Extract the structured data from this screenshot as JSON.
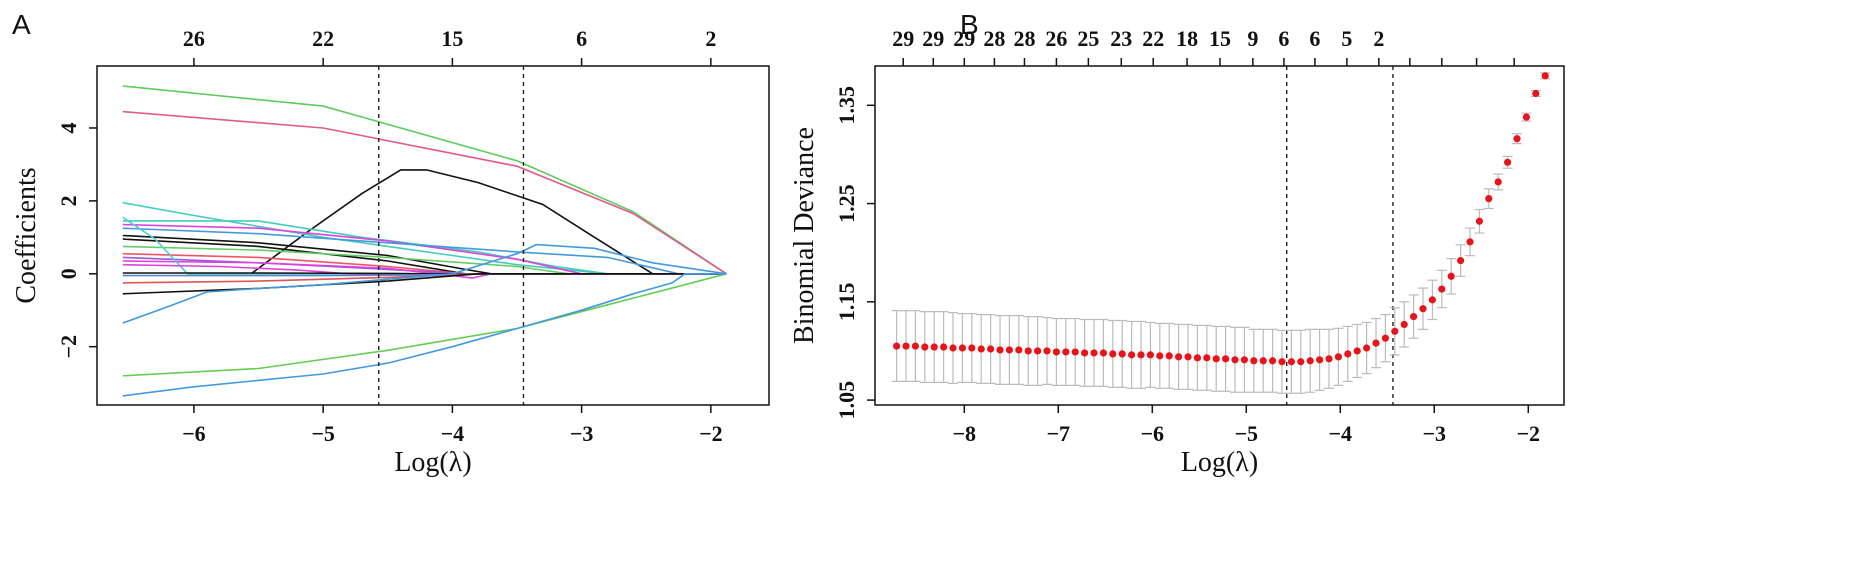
{
  "figure": {
    "panel_a_letter": "A",
    "panel_b_letter": "B"
  },
  "chart_data": [
    {
      "type": "line",
      "panel": "A",
      "xlabel": "Log(λ)",
      "ylabel": "Coefficients",
      "xlim": [
        -6.75,
        -1.55
      ],
      "ylim": [
        -3.6,
        5.7
      ],
      "x_ticks": [
        -6,
        -5,
        -4,
        -3,
        -2
      ],
      "x_tick_labels": [
        "−6",
        "−5",
        "−4",
        "−3",
        "−2"
      ],
      "y_ticks": [
        -2,
        0,
        2,
        4
      ],
      "y_tick_labels": [
        "−2",
        "0",
        "2",
        "4"
      ],
      "top_ticks": [
        -6,
        -5,
        -4,
        -3,
        -2
      ],
      "top_tick_labels": [
        "26",
        "22",
        "15",
        "6",
        "2"
      ],
      "vlines": [
        -4.57,
        -3.45
      ],
      "series": [
        {
          "name": "coef-1",
          "color": "#5ccc5c",
          "x": [
            -6.55,
            -5,
            -3.5,
            -2.6,
            -1.88
          ],
          "y": [
            5.15,
            4.6,
            3.1,
            1.7,
            0
          ]
        },
        {
          "name": "coef-2",
          "color": "#e05c8e",
          "x": [
            -6.55,
            -5,
            -3.5,
            -2.6,
            -1.88
          ],
          "y": [
            4.45,
            4.0,
            2.95,
            1.65,
            0
          ]
        },
        {
          "name": "coef-3",
          "color": "#111111",
          "x": [
            -5.55,
            -5.1,
            -4.7,
            -4.4,
            -4.2,
            -3.8,
            -3.3,
            -2.9,
            -2.45,
            -1.88
          ],
          "y": [
            0.02,
            1.2,
            2.2,
            2.85,
            2.85,
            2.5,
            1.9,
            1.0,
            0,
            0
          ]
        },
        {
          "name": "coef-4",
          "color": "#44ccbb",
          "x": [
            -6.55,
            -6,
            -5.5,
            -5,
            -4.5,
            -4,
            -3.5,
            -2.8,
            -1.88
          ],
          "y": [
            1.95,
            1.6,
            1.3,
            1.0,
            0.75,
            0.5,
            0.25,
            0,
            0
          ]
        },
        {
          "name": "coef-5",
          "color": "#44ccbb",
          "x": [
            -6.55,
            -5.5,
            -4.7,
            -3.8,
            -3.2,
            -2.8,
            -1.88
          ],
          "y": [
            1.45,
            1.45,
            1.0,
            0.6,
            0.2,
            0,
            0
          ]
        },
        {
          "name": "coef-6",
          "color": "#dd44dd",
          "x": [
            -6.55,
            -5.5,
            -4.5,
            -3.5,
            -3.0,
            -1.88
          ],
          "y": [
            1.35,
            1.25,
            0.9,
            0.4,
            0,
            0
          ]
        },
        {
          "name": "coef-7",
          "color": "#4499dd",
          "x": [
            -6.55,
            -5.5,
            -4.5,
            -3.5,
            -2.8,
            -2.25,
            -1.88
          ],
          "y": [
            1.25,
            1.1,
            0.85,
            0.6,
            0.45,
            0,
            0
          ]
        },
        {
          "name": "coef-8",
          "color": "#111111",
          "x": [
            -6.55,
            -5.5,
            -4.5,
            -3.9,
            -3.7,
            -1.88
          ],
          "y": [
            1.05,
            0.85,
            0.5,
            0.12,
            0,
            0
          ]
        },
        {
          "name": "coef-9",
          "color": "#111111",
          "x": [
            -6.55,
            -5.5,
            -4.5,
            -3.9,
            -1.88
          ],
          "y": [
            0.95,
            0.75,
            0.35,
            0,
            0
          ]
        },
        {
          "name": "coef-10",
          "color": "#66cc66",
          "x": [
            -6.55,
            -5.5,
            -4.5,
            -3.5,
            -3.1,
            -1.88
          ],
          "y": [
            0.75,
            0.65,
            0.45,
            0.2,
            0,
            0
          ]
        },
        {
          "name": "coef-11",
          "color": "#ee5566",
          "x": [
            -6.55,
            -5.5,
            -4.5,
            -3.9,
            -1.88
          ],
          "y": [
            0.55,
            0.45,
            0.2,
            0,
            0
          ]
        },
        {
          "name": "coef-12",
          "color": "#9955dd",
          "x": [
            -6.55,
            -5.5,
            -4.5,
            -3.9,
            -1.88
          ],
          "y": [
            0.45,
            0.3,
            0.12,
            0,
            0
          ]
        },
        {
          "name": "coef-13",
          "color": "#dd44dd",
          "x": [
            -6.55,
            -5.5,
            -4.5,
            -4.0,
            -3.85,
            -3.7,
            -1.88
          ],
          "y": [
            0.35,
            0.3,
            0.15,
            -0.05,
            -0.12,
            0,
            0
          ]
        },
        {
          "name": "coef-14",
          "color": "#55cccc",
          "x": [
            -6.55,
            -6.3,
            -6.05,
            -5.5,
            -1.88
          ],
          "y": [
            1.55,
            0.95,
            0,
            0,
            0
          ]
        },
        {
          "name": "coef-15",
          "color": "#dd44dd",
          "x": [
            -6.55,
            -5.8,
            -5.2,
            -4.8,
            -1.88
          ],
          "y": [
            0.25,
            0.2,
            0.1,
            0,
            0
          ]
        },
        {
          "name": "coef-16",
          "color": "#111111",
          "x": [
            -6.55,
            -5.5,
            -4.5,
            -4.2,
            -1.88
          ],
          "y": [
            0.02,
            0.02,
            0.01,
            0,
            0
          ]
        },
        {
          "name": "coef-17",
          "color": "#5588cc",
          "x": [
            -6.55,
            -5.0,
            -4.3,
            -3.8,
            -1.88
          ],
          "y": [
            -0.05,
            -0.05,
            -0.03,
            0,
            0
          ]
        },
        {
          "name": "coef-18",
          "color": "#dd5555",
          "x": [
            -6.55,
            -5.5,
            -4.5,
            -3.8,
            -1.88
          ],
          "y": [
            -0.25,
            -0.2,
            -0.1,
            0,
            0
          ]
        },
        {
          "name": "coef-19",
          "color": "#111111",
          "x": [
            -6.55,
            -5.5,
            -4.5,
            -3.8,
            -1.88
          ],
          "y": [
            -0.55,
            -0.4,
            -0.2,
            0,
            0
          ]
        },
        {
          "name": "coef-20",
          "color": "#4499dd",
          "x": [
            -6.55,
            -6.2,
            -5.9,
            -5.5,
            -5.0,
            -4.5,
            -4.0,
            -3.5,
            -3.35,
            -2.9,
            -2.45,
            -1.88
          ],
          "y": [
            -1.35,
            -0.9,
            -0.5,
            -0.4,
            -0.3,
            -0.15,
            0,
            0.55,
            0.8,
            0.7,
            0.3,
            0
          ]
        },
        {
          "name": "coef-21",
          "color": "#66cc55",
          "x": [
            -6.55,
            -5.5,
            -4.5,
            -3.5,
            -2.8,
            -2.2,
            -1.88
          ],
          "y": [
            -2.8,
            -2.6,
            -2.1,
            -1.5,
            -0.85,
            -0.3,
            0
          ]
        },
        {
          "name": "coef-22",
          "color": "#4499dd",
          "x": [
            -6.55,
            -6.0,
            -5.0,
            -4.5,
            -4.0,
            -3.5,
            -3.0,
            -2.6,
            -2.3,
            -2.2,
            -1.88
          ],
          "y": [
            -3.35,
            -3.1,
            -2.75,
            -2.45,
            -2.0,
            -1.5,
            -1.0,
            -0.55,
            -0.25,
            0,
            0
          ]
        }
      ]
    },
    {
      "type": "scatter",
      "panel": "B",
      "xlabel": "Log(λ)",
      "ylabel": "Binomial Deviance",
      "xlim": [
        -8.95,
        -1.62
      ],
      "ylim": [
        1.045,
        1.39
      ],
      "x_ticks": [
        -8,
        -7,
        -6,
        -5,
        -4,
        -3,
        -2
      ],
      "x_tick_labels": [
        "−8",
        "−7",
        "−6",
        "−5",
        "−4",
        "−3",
        "−2"
      ],
      "y_ticks": [
        1.05,
        1.15,
        1.25,
        1.35
      ],
      "y_tick_labels": [
        "1.05",
        "1.15",
        "1.25",
        "1.35"
      ],
      "top_ticks": [
        -8.65,
        -8.33,
        -8.0,
        -7.68,
        -7.36,
        -7.02,
        -6.68,
        -6.33,
        -5.99,
        -5.63,
        -5.28,
        -4.93,
        -4.6,
        -4.27,
        -3.93,
        -3.59,
        -3.26,
        -2.92,
        -2.55,
        -2.15
      ],
      "top_tick_labels": [
        "29",
        "29",
        "29",
        "28",
        "28",
        "26",
        "25",
        "23",
        "22",
        "18",
        "15",
        "9",
        "6",
        "6",
        "5",
        "2",
        "",
        "",
        "",
        ""
      ],
      "vlines": [
        -4.57,
        -3.44
      ],
      "x": [
        -8.72,
        -8.62,
        -8.52,
        -8.42,
        -8.32,
        -8.22,
        -8.12,
        -8.02,
        -7.92,
        -7.82,
        -7.72,
        -7.62,
        -7.52,
        -7.42,
        -7.32,
        -7.22,
        -7.12,
        -7.02,
        -6.92,
        -6.82,
        -6.72,
        -6.62,
        -6.52,
        -6.42,
        -6.32,
        -6.22,
        -6.12,
        -6.02,
        -5.92,
        -5.82,
        -5.72,
        -5.62,
        -5.52,
        -5.42,
        -5.32,
        -5.22,
        -5.12,
        -5.02,
        -4.92,
        -4.82,
        -4.72,
        -4.62,
        -4.52,
        -4.42,
        -4.32,
        -4.22,
        -4.12,
        -4.02,
        -3.92,
        -3.82,
        -3.72,
        -3.62,
        -3.52,
        -3.42,
        -3.32,
        -3.22,
        -3.12,
        -3.02,
        -2.92,
        -2.82,
        -2.72,
        -2.62,
        -2.52,
        -2.42,
        -2.32,
        -2.22,
        -2.12,
        -2.02,
        -1.92,
        -1.82
      ],
      "y": [
        1.105,
        1.105,
        1.105,
        1.104,
        1.104,
        1.104,
        1.103,
        1.103,
        1.103,
        1.102,
        1.102,
        1.101,
        1.101,
        1.101,
        1.1,
        1.1,
        1.1,
        1.099,
        1.099,
        1.099,
        1.098,
        1.098,
        1.098,
        1.097,
        1.097,
        1.096,
        1.096,
        1.096,
        1.095,
        1.095,
        1.094,
        1.094,
        1.093,
        1.093,
        1.092,
        1.092,
        1.091,
        1.091,
        1.09,
        1.09,
        1.09,
        1.089,
        1.089,
        1.089,
        1.09,
        1.091,
        1.092,
        1.094,
        1.097,
        1.1,
        1.103,
        1.108,
        1.113,
        1.12,
        1.127,
        1.135,
        1.143,
        1.152,
        1.163,
        1.176,
        1.192,
        1.211,
        1.232,
        1.255,
        1.272,
        1.292,
        1.316,
        1.338,
        1.362,
        1.38
      ],
      "err": [
        0.036,
        0.036,
        0.036,
        0.036,
        0.036,
        0.036,
        0.036,
        0.035,
        0.035,
        0.035,
        0.035,
        0.035,
        0.035,
        0.035,
        0.035,
        0.035,
        0.034,
        0.034,
        0.034,
        0.034,
        0.034,
        0.034,
        0.034,
        0.034,
        0.034,
        0.034,
        0.034,
        0.033,
        0.033,
        0.033,
        0.033,
        0.033,
        0.033,
        0.033,
        0.033,
        0.033,
        0.033,
        0.033,
        0.032,
        0.032,
        0.032,
        0.032,
        0.032,
        0.032,
        0.032,
        0.031,
        0.03,
        0.029,
        0.028,
        0.027,
        0.026,
        0.025,
        0.024,
        0.024,
        0.023,
        0.022,
        0.021,
        0.02,
        0.019,
        0.018,
        0.016,
        0.014,
        0.012,
        0.01,
        0.008,
        0.006,
        0.005,
        0.004,
        0.003,
        0.003
      ],
      "point_color": "#e8141c",
      "error_color": "#bbbbbb"
    }
  ]
}
